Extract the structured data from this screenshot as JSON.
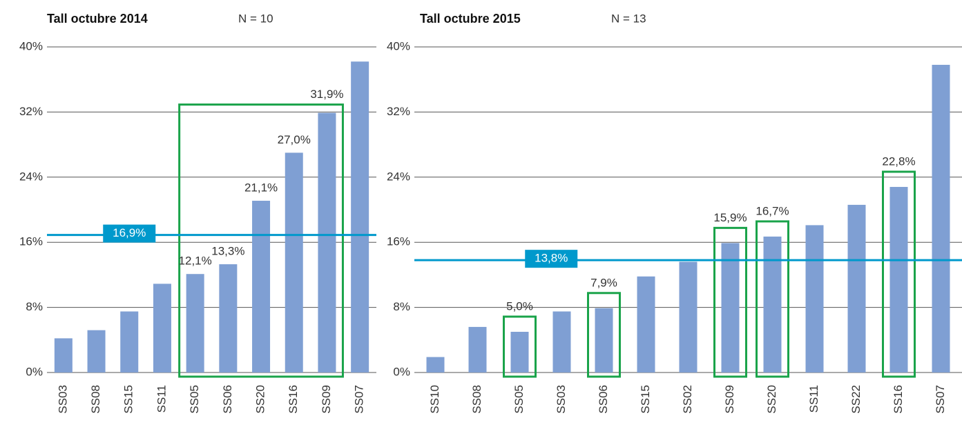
{
  "chart_data": [
    {
      "type": "bar",
      "title": "Tall octubre 2014",
      "subtitle": "N = 10",
      "categories": [
        "SS03",
        "SS08",
        "SS15",
        "SS11",
        "SS05",
        "SS06",
        "SS20",
        "SS16",
        "SS09",
        "SS07"
      ],
      "values": [
        4.2,
        5.2,
        7.5,
        10.9,
        12.1,
        13.3,
        21.1,
        27.0,
        31.9,
        38.2
      ],
      "value_labels": [
        null,
        null,
        null,
        null,
        "12,1%",
        "13,3%",
        "21,1%",
        "27,0%",
        "31,9%",
        null
      ],
      "color": "#7f9fd3",
      "ylim": [
        0,
        40
      ],
      "yticks": [
        {
          "value": 0,
          "label": "0%"
        },
        {
          "value": 8,
          "label": "8%"
        },
        {
          "value": 16,
          "label": "16%"
        },
        {
          "value": 24,
          "label": "24%"
        },
        {
          "value": 32,
          "label": "32%"
        },
        {
          "value": 40,
          "label": "40%"
        }
      ],
      "grid": true,
      "reference": {
        "value": 16.9,
        "label": "16,9%",
        "color": "#0099cc"
      },
      "highlight_ranges": [
        [
          4,
          8
        ]
      ],
      "highlight_color": "#1aa34a"
    },
    {
      "type": "bar",
      "title": "Tall octubre 2015",
      "subtitle": "N = 13",
      "categories": [
        "SS10",
        "SS08",
        "SS05",
        "SS03",
        "SS06",
        "SS15",
        "SS02",
        "SS09",
        "SS20",
        "SS11",
        "SS22",
        "SS16",
        "SS07"
      ],
      "values": [
        1.9,
        5.6,
        5.0,
        7.5,
        7.9,
        11.8,
        13.6,
        15.9,
        16.7,
        18.1,
        20.6,
        22.8,
        37.8
      ],
      "value_labels": [
        null,
        null,
        "5,0%",
        null,
        "7,9%",
        null,
        null,
        "15,9%",
        "16,7%",
        null,
        null,
        "22,8%",
        null
      ],
      "color": "#7f9fd3",
      "ylim": [
        0,
        40
      ],
      "yticks": [
        {
          "value": 0,
          "label": "0%"
        },
        {
          "value": 8,
          "label": "8%"
        },
        {
          "value": 16,
          "label": "16%"
        },
        {
          "value": 24,
          "label": "24%"
        },
        {
          "value": 32,
          "label": "32%"
        },
        {
          "value": 40,
          "label": "40%"
        }
      ],
      "grid": true,
      "reference": {
        "value": 13.8,
        "label": "13,8%",
        "color": "#0099cc"
      },
      "highlight_ranges": [
        [
          2,
          2
        ],
        [
          4,
          4
        ],
        [
          7,
          7
        ],
        [
          8,
          8
        ],
        [
          11,
          11
        ]
      ],
      "highlight_color": "#1aa34a"
    }
  ]
}
